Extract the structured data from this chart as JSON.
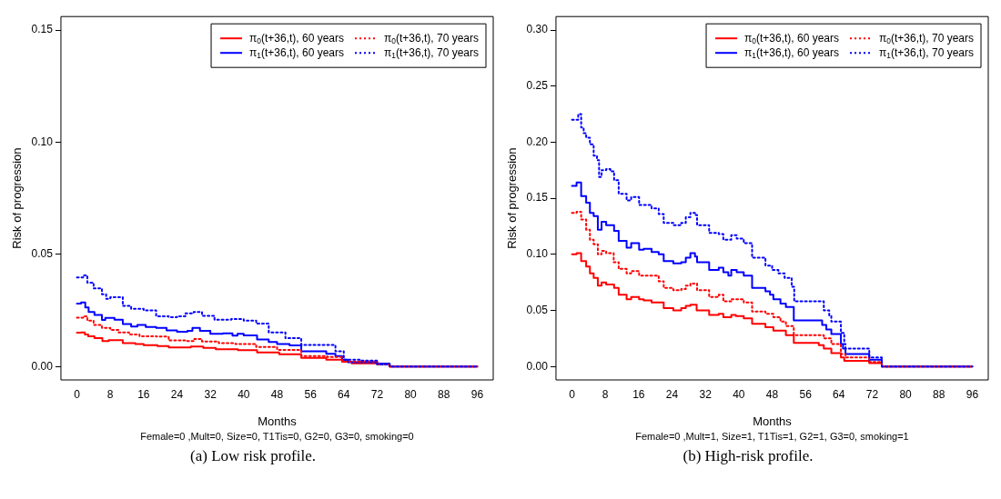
{
  "chart_data": [
    {
      "type": "step",
      "xlabel": "Months",
      "ylabel": "Risk of progression",
      "annotations": [
        "Female=0 ,Mult=0, Size=0, T1Tis=0, G2=0, G3=0, smoking=0",
        "(a)  Low risk profile."
      ],
      "xlim": [
        -3.84,
        99.84
      ],
      "xticks": [
        0,
        8,
        16,
        24,
        32,
        40,
        48,
        56,
        64,
        72,
        80,
        88,
        96
      ],
      "ylim": [
        -0.006,
        0.156
      ],
      "yticks": [
        {
          "value": 0,
          "label": "0.00"
        },
        {
          "value": 0.05,
          "label": "0.05"
        },
        {
          "value": 0.1,
          "label": "0.10"
        },
        {
          "value": 0.15,
          "label": "0.15"
        }
      ],
      "grid": false,
      "legend": "top right",
      "series": [
        {
          "name": "π$_{0}$(t+36,t), 60 years",
          "color": "#ff0000",
          "line_style": "solid",
          "x": [
            0,
            1,
            1.9,
            2.7,
            4.2,
            6.1,
            7.6,
            11,
            14,
            16,
            19.3,
            22,
            27.3,
            30.3,
            33.3,
            38.6,
            43.2,
            48.5,
            53.8,
            59.8,
            63.6,
            65.9,
            72,
            75,
            96
          ],
          "values": [
            0.0151,
            0.0152,
            0.0143,
            0.0135,
            0.0126,
            0.0113,
            0.0117,
            0.0104,
            0.01,
            0.0095,
            0.0091,
            0.0085,
            0.0089,
            0.0083,
            0.0077,
            0.0073,
            0.0063,
            0.0054,
            0.0038,
            0.003,
            0.0021,
            0.0014,
            0.001,
            0,
            0
          ]
        },
        {
          "name": "π$_{1}$(t+36,t), 60 years",
          "color": "#0000ff",
          "line_style": "solid",
          "x": [
            0,
            1,
            2,
            2.8,
            4.2,
            6,
            6.8,
            9,
            11,
            13,
            14.5,
            16.5,
            19,
            21.5,
            24,
            26.5,
            27.7,
            29.5,
            32,
            35,
            37.3,
            38.5,
            40,
            43.2,
            46,
            48,
            51,
            53.8,
            59.8,
            62,
            63.6,
            65,
            72,
            75,
            96
          ],
          "values": [
            0.028,
            0.0285,
            0.0263,
            0.0243,
            0.023,
            0.0207,
            0.0217,
            0.0208,
            0.0189,
            0.0178,
            0.0185,
            0.0176,
            0.0172,
            0.0161,
            0.0155,
            0.0159,
            0.0172,
            0.0159,
            0.0146,
            0.0148,
            0.0138,
            0.0146,
            0.0139,
            0.012,
            0.0109,
            0.01,
            0.0094,
            0.0068,
            0.0057,
            0.0046,
            0.003,
            0.0019,
            0.0013,
            0,
            0
          ]
        },
        {
          "name": "π$_{0}$(t+36,t), 70 years",
          "color": "#ff0000",
          "line_style": "dotted",
          "x": [
            0,
            1.5,
            2.5,
            4,
            6,
            8,
            10,
            12.5,
            15,
            19,
            22,
            26,
            28,
            30,
            34,
            38,
            43,
            48,
            53.8,
            60,
            63.6,
            72,
            75,
            96
          ],
          "values": [
            0.0218,
            0.0224,
            0.0204,
            0.0185,
            0.0172,
            0.0163,
            0.0152,
            0.0143,
            0.0135,
            0.0133,
            0.0116,
            0.0113,
            0.0122,
            0.0111,
            0.0104,
            0.01,
            0.0087,
            0.0074,
            0.0046,
            0.0042,
            0.0022,
            0.0009,
            0,
            0
          ]
        },
        {
          "name": "π$_{1}$(t+36,t), 70 years",
          "color": "#0000ff",
          "line_style": "dotted",
          "x": [
            0,
            1.5,
            2.5,
            4,
            6,
            7,
            8,
            11,
            13,
            16,
            19,
            22,
            24,
            26,
            28,
            30,
            33,
            37,
            40,
            43,
            46,
            50,
            53.8,
            60,
            62,
            64,
            68,
            72,
            75,
            96
          ],
          "values": [
            0.0397,
            0.0406,
            0.0374,
            0.0348,
            0.0322,
            0.0302,
            0.0309,
            0.027,
            0.0257,
            0.025,
            0.0224,
            0.022,
            0.0224,
            0.0237,
            0.0243,
            0.0226,
            0.0208,
            0.0211,
            0.0204,
            0.0191,
            0.0152,
            0.0126,
            0.0096,
            0.0096,
            0.0068,
            0.003,
            0.0026,
            0.0009,
            0,
            0
          ]
        }
      ]
    },
    {
      "type": "step",
      "xlabel": "Months",
      "ylabel": "Risk of progression",
      "annotations": [
        "Female=0 ,Mult=1, Size=1, T1Tis=1, G2=1, G3=0, smoking=1",
        "(b)  High-risk profile."
      ],
      "xlim": [
        -3.84,
        99.84
      ],
      "xticks": [
        0,
        8,
        16,
        24,
        32,
        40,
        48,
        56,
        64,
        72,
        80,
        88,
        96
      ],
      "ylim": [
        -0.012,
        0.312
      ],
      "yticks": [
        {
          "value": 0,
          "label": "0.00"
        },
        {
          "value": 0.05,
          "label": "0.05"
        },
        {
          "value": 0.1,
          "label": "0.10"
        },
        {
          "value": 0.15,
          "label": "0.15"
        },
        {
          "value": 0.2,
          "label": "0.20"
        },
        {
          "value": 0.25,
          "label": "0.25"
        },
        {
          "value": 0.3,
          "label": "0.30"
        }
      ],
      "grid": false,
      "legend": "top right",
      "series": [
        {
          "name": "π$_{0}$(t+36,t), 60 years",
          "color": "#ff0000",
          "line_style": "solid",
          "x": [
            0,
            1.1,
            2.2,
            3.4,
            4.3,
            5.2,
            6.2,
            7.1,
            8.2,
            10.1,
            11.2,
            13.1,
            14.2,
            16.1,
            17.2,
            19.1,
            22,
            24.3,
            26.2,
            27.3,
            28.4,
            29.9,
            32.9,
            35.2,
            36.3,
            38.2,
            39.3,
            41.2,
            43.2,
            46.4,
            48.3,
            51.3,
            53.2,
            59.2,
            60.4,
            62.2,
            64.5,
            65.3,
            71.3,
            74.3,
            96
          ],
          "values": [
            0.1,
            0.101,
            0.094,
            0.089,
            0.083,
            0.079,
            0.072,
            0.075,
            0.073,
            0.07,
            0.064,
            0.06,
            0.062,
            0.06,
            0.059,
            0.057,
            0.052,
            0.05,
            0.052,
            0.054,
            0.055,
            0.05,
            0.046,
            0.047,
            0.044,
            0.046,
            0.045,
            0.043,
            0.038,
            0.035,
            0.032,
            0.028,
            0.021,
            0.019,
            0.016,
            0.012,
            0.008,
            0.005,
            0.003,
            0,
            0
          ]
        },
        {
          "name": "π$_{1}$(t+36,t), 60 years",
          "color": "#0000ff",
          "line_style": "solid",
          "x": [
            0,
            1.1,
            2.2,
            3.4,
            4.3,
            5.2,
            6.2,
            7.1,
            8.2,
            10.1,
            11.2,
            13.1,
            14.2,
            16.1,
            17.2,
            19.1,
            20.8,
            22,
            24.3,
            26.2,
            27.3,
            28.4,
            29.5,
            30,
            32.9,
            35.2,
            36.3,
            37.5,
            38.2,
            39.5,
            41.2,
            43.2,
            46.4,
            47.5,
            48.3,
            50,
            51.3,
            53.2,
            60,
            61,
            62.2,
            64.5,
            65,
            65.6,
            71.3,
            74.3,
            96
          ],
          "values": [
            0.161,
            0.164,
            0.152,
            0.146,
            0.137,
            0.134,
            0.122,
            0.129,
            0.126,
            0.121,
            0.112,
            0.106,
            0.11,
            0.104,
            0.105,
            0.102,
            0.1,
            0.094,
            0.092,
            0.093,
            0.097,
            0.101,
            0.098,
            0.093,
            0.086,
            0.088,
            0.084,
            0.081,
            0.086,
            0.084,
            0.081,
            0.07,
            0.067,
            0.064,
            0.06,
            0.056,
            0.053,
            0.041,
            0.037,
            0.033,
            0.029,
            0.02,
            0.016,
            0.011,
            0.006,
            0,
            0
          ]
        },
        {
          "name": "π$_{0}$(t+36,t), 70 years",
          "color": "#ff0000",
          "line_style": "dotted",
          "x": [
            0,
            1.1,
            2.2,
            3.4,
            4.3,
            5.2,
            6.2,
            7.1,
            8.2,
            10,
            11.2,
            13.1,
            14.2,
            16.1,
            20.8,
            22,
            24.3,
            26.2,
            27.3,
            28.4,
            30,
            32.9,
            35.2,
            36.3,
            38.2,
            41.2,
            43.2,
            46.4,
            48.3,
            50,
            51.3,
            53.2,
            60.4,
            62.2,
            64.5,
            65.6,
            71.3,
            74.3,
            96
          ],
          "values": [
            0.137,
            0.138,
            0.131,
            0.122,
            0.113,
            0.109,
            0.1,
            0.103,
            0.101,
            0.093,
            0.087,
            0.083,
            0.085,
            0.081,
            0.076,
            0.07,
            0.068,
            0.069,
            0.072,
            0.074,
            0.068,
            0.062,
            0.064,
            0.058,
            0.06,
            0.057,
            0.049,
            0.047,
            0.044,
            0.04,
            0.036,
            0.028,
            0.025,
            0.02,
            0.011,
            0.008,
            0.004,
            0,
            0
          ]
        },
        {
          "name": "π$_{1}$(t+36,t), 70 years",
          "color": "#0000ff",
          "line_style": "dotted",
          "x": [
            0,
            1.5,
            2.2,
            2.8,
            3.4,
            4.3,
            5.2,
            6,
            6.5,
            7.1,
            8.2,
            9.2,
            10.1,
            11.2,
            13.1,
            14.2,
            16.1,
            19.1,
            20.8,
            22,
            24.3,
            26.2,
            27.3,
            28.4,
            29.5,
            30,
            32.9,
            35.2,
            36.3,
            38.2,
            39.5,
            41.2,
            43.2,
            46.4,
            48,
            49.5,
            51,
            52.7,
            53.3,
            60.4,
            61.7,
            62.2,
            64.5,
            65.3,
            65.6,
            71.3,
            74.3,
            96
          ],
          "values": [
            0.22,
            0.225,
            0.213,
            0.208,
            0.204,
            0.198,
            0.188,
            0.184,
            0.169,
            0.175,
            0.176,
            0.174,
            0.166,
            0.154,
            0.148,
            0.151,
            0.144,
            0.141,
            0.136,
            0.128,
            0.126,
            0.128,
            0.133,
            0.137,
            0.135,
            0.126,
            0.119,
            0.118,
            0.113,
            0.117,
            0.114,
            0.11,
            0.097,
            0.09,
            0.086,
            0.083,
            0.079,
            0.071,
            0.058,
            0.05,
            0.045,
            0.04,
            0.03,
            0.02,
            0.016,
            0.008,
            0,
            0
          ]
        }
      ]
    }
  ]
}
